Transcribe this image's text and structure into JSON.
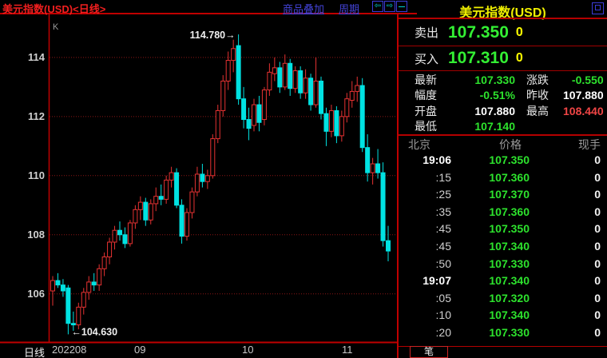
{
  "chart_header": {
    "title": "美元指数(USD)<日线>",
    "overlay_label": "商品叠加",
    "period_label": "周期",
    "prev_glyph": "⇦",
    "next_glyph": "⇨"
  },
  "chart": {
    "indicator_label": "K",
    "period_label": "日线"
  },
  "chart_data": {
    "type": "candlestick",
    "title": "美元指数(USD) 日线",
    "y_ticks": [
      114,
      112,
      110,
      108,
      106
    ],
    "price_min": 104.37,
    "price_max": 115.43,
    "grid": "dotted-horizontal",
    "x_labels": [
      {
        "text": "202208",
        "x": 65
      },
      {
        "text": "09",
        "x": 168
      },
      {
        "text": "10",
        "x": 303
      },
      {
        "text": "11",
        "x": 428
      }
    ],
    "annotation_high": "114.780",
    "annotation_low": "104.630",
    "candles": [
      [
        106.1,
        106.6,
        105.6,
        106.45
      ],
      [
        106.45,
        106.7,
        106.2,
        106.3
      ],
      [
        106.3,
        106.5,
        105.9,
        106.1
      ],
      [
        106.2,
        106.3,
        104.63,
        105.0
      ],
      [
        105.0,
        105.4,
        104.75,
        104.95
      ],
      [
        104.95,
        105.7,
        104.8,
        105.55
      ],
      [
        105.55,
        106.2,
        105.3,
        106.05
      ],
      [
        106.05,
        106.6,
        105.8,
        106.4
      ],
      [
        106.4,
        106.7,
        106.1,
        106.3
      ],
      [
        106.3,
        107.0,
        106.1,
        106.85
      ],
      [
        106.85,
        107.4,
        106.6,
        107.25
      ],
      [
        107.25,
        107.9,
        107.0,
        107.75
      ],
      [
        107.75,
        108.3,
        107.5,
        108.15
      ],
      [
        108.15,
        108.45,
        107.8,
        108.0
      ],
      [
        108.0,
        108.25,
        107.55,
        107.7
      ],
      [
        107.7,
        108.5,
        107.6,
        108.4
      ],
      [
        108.4,
        109.0,
        108.2,
        108.85
      ],
      [
        108.85,
        109.3,
        108.5,
        109.1
      ],
      [
        109.1,
        109.25,
        108.3,
        108.5
      ],
      [
        108.5,
        109.2,
        108.35,
        109.05
      ],
      [
        109.05,
        109.6,
        108.8,
        109.3
      ],
      [
        109.3,
        109.7,
        109.0,
        109.2
      ],
      [
        109.2,
        110.0,
        109.05,
        109.85
      ],
      [
        109.85,
        110.3,
        109.6,
        110.1
      ],
      [
        110.1,
        110.25,
        108.9,
        109.0
      ],
      [
        109.0,
        109.2,
        107.7,
        107.95
      ],
      [
        107.95,
        108.9,
        107.8,
        108.75
      ],
      [
        108.75,
        109.6,
        108.55,
        109.45
      ],
      [
        109.45,
        110.3,
        109.3,
        110.05
      ],
      [
        110.05,
        110.4,
        109.6,
        109.8
      ],
      [
        109.8,
        110.2,
        109.55,
        110.0
      ],
      [
        110.0,
        111.4,
        109.9,
        111.25
      ],
      [
        111.25,
        112.4,
        111.1,
        112.2
      ],
      [
        112.2,
        113.4,
        112.0,
        113.2
      ],
      [
        113.2,
        114.2,
        112.9,
        113.9
      ],
      [
        113.9,
        114.6,
        113.5,
        114.3
      ],
      [
        114.4,
        114.78,
        112.4,
        112.6
      ],
      [
        112.6,
        113.0,
        111.6,
        111.9
      ],
      [
        111.9,
        112.3,
        111.2,
        111.6
      ],
      [
        111.7,
        112.6,
        111.5,
        112.4
      ],
      [
        112.4,
        112.7,
        111.5,
        111.8
      ],
      [
        111.9,
        113.0,
        111.7,
        112.9
      ],
      [
        112.9,
        113.8,
        112.7,
        113.5
      ],
      [
        113.45,
        114.0,
        113.2,
        113.65
      ],
      [
        113.65,
        113.85,
        112.8,
        113.0
      ],
      [
        113.0,
        114.1,
        112.9,
        113.8
      ],
      [
        113.8,
        113.95,
        112.7,
        112.95
      ],
      [
        112.95,
        113.7,
        112.8,
        113.55
      ],
      [
        113.55,
        113.7,
        112.6,
        112.8
      ],
      [
        112.8,
        113.6,
        112.6,
        113.3
      ],
      [
        113.3,
        113.45,
        112.2,
        112.4
      ],
      [
        112.4,
        114.0,
        112.3,
        113.2
      ],
      [
        113.2,
        113.35,
        111.9,
        112.1
      ],
      [
        112.1,
        112.3,
        111.0,
        111.5
      ],
      [
        111.5,
        112.4,
        111.3,
        112.2
      ],
      [
        112.2,
        112.35,
        111.1,
        111.35
      ],
      [
        111.35,
        112.2,
        111.15,
        112.0
      ],
      [
        112.0,
        112.8,
        111.8,
        112.6
      ],
      [
        112.55,
        113.2,
        112.3,
        112.85
      ],
      [
        112.85,
        113.35,
        112.5,
        113.05
      ],
      [
        113.05,
        113.3,
        110.8,
        110.95
      ],
      [
        110.95,
        111.4,
        109.8,
        110.1
      ],
      [
        110.1,
        110.6,
        109.7,
        110.4
      ],
      [
        110.4,
        110.9,
        109.9,
        110.1
      ],
      [
        110.1,
        110.45,
        107.6,
        107.8
      ],
      [
        107.8,
        108.3,
        107.1,
        107.45
      ]
    ]
  },
  "quote_panel": {
    "title": "美元指数(USD)",
    "sell_label": "卖出",
    "sell_price": "107.350",
    "sell_vol": "0",
    "buy_label": "买入",
    "buy_price": "107.310",
    "buy_vol": "0",
    "stats": [
      {
        "label": "最新",
        "value": "107.330",
        "color": "green"
      },
      {
        "label": "涨跌",
        "value": "-0.550",
        "color": "green"
      },
      {
        "label": "幅度",
        "value": "-0.51%",
        "color": "green"
      },
      {
        "label": "昨收",
        "value": "107.880",
        "color": "white"
      },
      {
        "label": "开盘",
        "value": "107.880",
        "color": "white"
      },
      {
        "label": "最高",
        "value": "108.440",
        "color": "red"
      },
      {
        "label": "最低",
        "value": "107.140",
        "color": "green"
      }
    ],
    "table": {
      "headers": [
        "北京",
        "价格",
        "现手"
      ],
      "rows": [
        {
          "time": "19:06",
          "price": "107.350",
          "vol": "0",
          "hour": true
        },
        {
          "time": ":15",
          "price": "107.360",
          "vol": "0",
          "hour": false
        },
        {
          "time": ":25",
          "price": "107.370",
          "vol": "0",
          "hour": false
        },
        {
          "time": ":35",
          "price": "107.360",
          "vol": "0",
          "hour": false
        },
        {
          "time": ":45",
          "price": "107.350",
          "vol": "0",
          "hour": false
        },
        {
          "time": ":45",
          "price": "107.340",
          "vol": "0",
          "hour": false
        },
        {
          "time": ":50",
          "price": "107.330",
          "vol": "0",
          "hour": false
        },
        {
          "time": "19:07",
          "price": "107.340",
          "vol": "0",
          "hour": true
        },
        {
          "time": ":05",
          "price": "107.320",
          "vol": "0",
          "hour": false
        },
        {
          "time": ":10",
          "price": "107.340",
          "vol": "0",
          "hour": false
        },
        {
          "time": ":20",
          "price": "107.330",
          "vol": "0",
          "hour": false
        }
      ]
    },
    "bottom_tab": "笔"
  },
  "colors": {
    "up_candle": "#e63232",
    "down_candle": "#00e2e2",
    "grid_line": "#8a1616",
    "axis_line": "#c00000",
    "green": "#2de22d",
    "white": "#ffffff",
    "red": "#f04545",
    "yellow": "#ffff00",
    "link_blue": "#4343d8",
    "title_red": "#f21f1f",
    "panel_title_yellow": "#f0f000"
  }
}
